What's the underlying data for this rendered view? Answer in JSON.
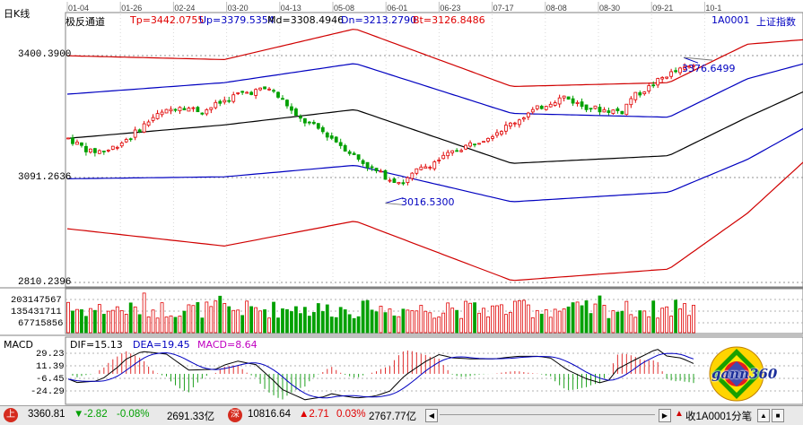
{
  "header": {
    "chart_title": "日K线",
    "indicator_name": "极反通道",
    "tp": "Tp=3442.0755",
    "up": "Up=3379.5354",
    "md": "Md=3308.4946",
    "dn": "Dn=3213.2790",
    "bt": "Bt=3126.8486",
    "code": "1A0001",
    "index_name": "上证指数"
  },
  "dates": [
    "01-04",
    "01-26",
    "02-24",
    "03-20",
    "04-13",
    "05-08",
    "06-01",
    "06-23",
    "07-17",
    "08-08",
    "08-30",
    "09-21",
    "10-1"
  ],
  "price_axis": [
    "3400.3900",
    "3091.2636",
    "2810.2396"
  ],
  "volume_axis": [
    "203147567",
    "135431711",
    "67715856"
  ],
  "annotations": {
    "high": "3376.6499",
    "low": "3016.5300"
  },
  "macd": {
    "title": "MACD",
    "dif": "DIF=15.13",
    "dea": "DEA=19.45",
    "macd": "MACD=8.64",
    "axis": [
      "29.23",
      "11.39",
      "-6.45",
      "-24.29"
    ]
  },
  "logo": {
    "text": "gann360"
  },
  "status_bar": {
    "sh_value": "3360.81",
    "sh_change": "▼-2.82",
    "sh_pct": "-0.08%",
    "sh_amount": "2691.33亿",
    "sz_badge": "深",
    "sz_value": "10816.64",
    "sz_change": "▲2.71",
    "sz_pct": "0.03%",
    "sz_amount": "2767.77亿",
    "right_text": "收1A0001分笔"
  },
  "colors": {
    "up": "#e00000",
    "down": "#00a000",
    "band_outer": "#d00000",
    "band_inner": "#0000c0",
    "mid": "#000000"
  },
  "chart_data": {
    "type": "candlestick",
    "title": "上证指数 日K线 极反通道",
    "x_tick_labels": [
      "01-04",
      "01-26",
      "02-24",
      "03-20",
      "04-13",
      "05-08",
      "06-01",
      "06-23",
      "07-17",
      "08-08",
      "08-30",
      "09-21",
      "10-1"
    ],
    "ylim": [
      2810.24,
      3400.39
    ],
    "price_path": [
      [
        0,
        3185
      ],
      [
        5,
        3150
      ],
      [
        9,
        3155
      ],
      [
        14,
        3190
      ],
      [
        19,
        3240
      ],
      [
        25,
        3270
      ],
      [
        30,
        3255
      ],
      [
        38,
        3300
      ],
      [
        45,
        3315
      ],
      [
        49,
        3272
      ],
      [
        51,
        3240
      ],
      [
        56,
        3210
      ],
      [
        60,
        3178
      ],
      [
        64,
        3140
      ],
      [
        68,
        3105
      ],
      [
        72,
        3080
      ],
      [
        75,
        3070
      ],
      [
        78,
        3100
      ],
      [
        83,
        3130
      ],
      [
        88,
        3160
      ],
      [
        93,
        3185
      ],
      [
        98,
        3215
      ],
      [
        103,
        3250
      ],
      [
        108,
        3280
      ],
      [
        111,
        3293
      ],
      [
        115,
        3270
      ],
      [
        119,
        3260
      ],
      [
        124,
        3255
      ],
      [
        126,
        3290
      ],
      [
        130,
        3318
      ],
      [
        134,
        3350
      ],
      [
        139,
        3371
      ],
      [
        140,
        3376
      ]
    ],
    "bands": {
      "Tp": [
        [
          0,
          3400
        ],
        [
          30,
          3390
        ],
        [
          55,
          3470
        ],
        [
          85,
          3320
        ],
        [
          115,
          3330
        ],
        [
          130,
          3430
        ],
        [
          141,
          3442
        ]
      ],
      "Up": [
        [
          0,
          3300
        ],
        [
          30,
          3330
        ],
        [
          55,
          3380
        ],
        [
          85,
          3250
        ],
        [
          115,
          3240
        ],
        [
          130,
          3340
        ],
        [
          141,
          3380
        ]
      ],
      "Md": [
        [
          0,
          3185
        ],
        [
          30,
          3220
        ],
        [
          55,
          3260
        ],
        [
          85,
          3120
        ],
        [
          115,
          3140
        ],
        [
          130,
          3240
        ],
        [
          141,
          3308
        ]
      ],
      "Dn": [
        [
          0,
          3080
        ],
        [
          30,
          3085
        ],
        [
          55,
          3115
        ],
        [
          85,
          3020
        ],
        [
          115,
          3045
        ],
        [
          130,
          3130
        ],
        [
          141,
          3213
        ]
      ],
      "Bt": [
        [
          0,
          2950
        ],
        [
          30,
          2905
        ],
        [
          55,
          2970
        ],
        [
          85,
          2815
        ],
        [
          115,
          2845
        ],
        [
          130,
          2990
        ],
        [
          141,
          3127
        ]
      ]
    },
    "volume_axis_values": [
      203147567,
      135431711,
      67715856
    ],
    "macd": {
      "dif": 15.13,
      "dea": 19.45,
      "macd": 8.64,
      "ylim": [
        -24.29,
        29.23
      ]
    }
  }
}
